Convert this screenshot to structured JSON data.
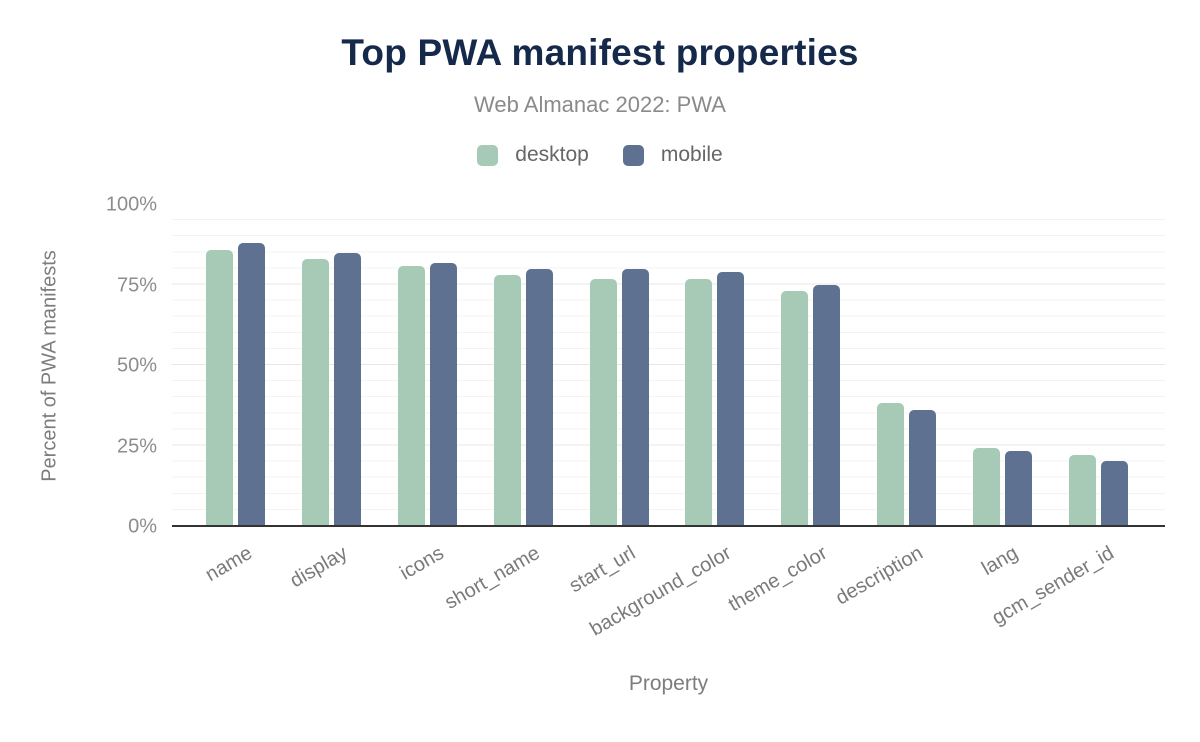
{
  "palette": {
    "desktop_green": "#a6cab5",
    "mobile_slate": "#5e7191",
    "title_navy": "#15294b",
    "subtitle_gray": "#8a8a8a",
    "axis_text_gray": "#7d7d7d",
    "tick_text_gray": "#8d8d8d",
    "axis_line": "#333333"
  },
  "chart_data": {
    "type": "bar",
    "title": "Top PWA manifest properties",
    "subtitle": "Web Almanac 2022: PWA",
    "xlabel": "Property",
    "ylabel": "Percent of PWA manifests",
    "unit": "%",
    "categories": [
      "name",
      "display",
      "icons",
      "short_name",
      "start_url",
      "background_color",
      "theme_color",
      "description",
      "lang",
      "gcm_sender_id"
    ],
    "series": [
      {
        "name": "desktop",
        "color": "#a6cab5",
        "values": [
          86,
          83,
          81,
          78,
          77,
          77,
          73,
          38,
          24,
          22
        ]
      },
      {
        "name": "mobile",
        "color": "#5e7191",
        "values": [
          88,
          85,
          82,
          80,
          80,
          79,
          75,
          36,
          23,
          20
        ]
      }
    ],
    "ylim": [
      0,
      100
    ],
    "yticks": [
      {
        "value": 0,
        "label": "0%"
      },
      {
        "value": 25,
        "label": "25%"
      },
      {
        "value": 50,
        "label": "50%"
      },
      {
        "value": 75,
        "label": "75%"
      },
      {
        "value": 100,
        "label": "100%"
      }
    ],
    "grid": {
      "horizontal_minor_every": 5,
      "horizontal_major_every": 25,
      "vertical": false
    },
    "legend_position": "top"
  }
}
